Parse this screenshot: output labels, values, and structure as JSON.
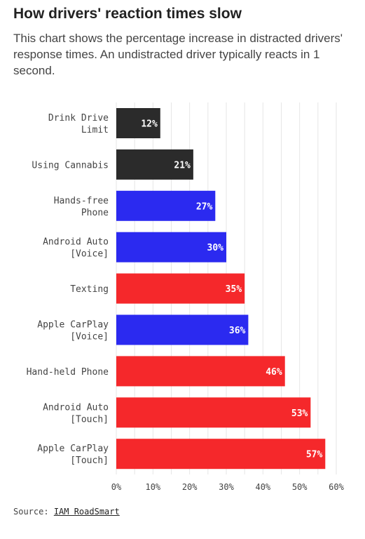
{
  "header": {
    "title": "How drivers' reaction times slow",
    "subtitle": "This chart shows the percentage increase in distracted drivers' response times. An undistracted driver typically reacts in 1 second."
  },
  "colors": {
    "black": "#2b2b2b",
    "blue": "#2b2af0",
    "red": "#f5282b",
    "grid": "#e6e6e6",
    "label": "#444444"
  },
  "chart_data": {
    "type": "bar",
    "orientation": "horizontal",
    "xlim": [
      0,
      60
    ],
    "ticks": [
      0,
      10,
      20,
      30,
      40,
      50,
      60
    ],
    "tick_labels": [
      "0%",
      "10%",
      "20%",
      "30%",
      "40%",
      "50%",
      "60%"
    ],
    "grid": true,
    "bars": [
      {
        "label": [
          "Drink Drive",
          "Limit"
        ],
        "value": 12,
        "value_label": "12%",
        "color": "black"
      },
      {
        "label": [
          "Using Cannabis"
        ],
        "value": 21,
        "value_label": "21%",
        "color": "black"
      },
      {
        "label": [
          "Hands-free",
          "Phone"
        ],
        "value": 27,
        "value_label": "27%",
        "color": "blue"
      },
      {
        "label": [
          "Android Auto",
          "[Voice]"
        ],
        "value": 30,
        "value_label": "30%",
        "color": "blue"
      },
      {
        "label": [
          "Texting"
        ],
        "value": 35,
        "value_label": "35%",
        "color": "red"
      },
      {
        "label": [
          "Apple CarPlay",
          "[Voice]"
        ],
        "value": 36,
        "value_label": "36%",
        "color": "blue"
      },
      {
        "label": [
          "Hand-held Phone"
        ],
        "value": 46,
        "value_label": "46%",
        "color": "red"
      },
      {
        "label": [
          "Android Auto",
          "[Touch]"
        ],
        "value": 53,
        "value_label": "53%",
        "color": "red"
      },
      {
        "label": [
          "Apple CarPlay",
          "[Touch]"
        ],
        "value": 57,
        "value_label": "57%",
        "color": "red"
      }
    ]
  },
  "source": {
    "prefix": "Source:",
    "link_text": "IAM RoadSmart"
  }
}
